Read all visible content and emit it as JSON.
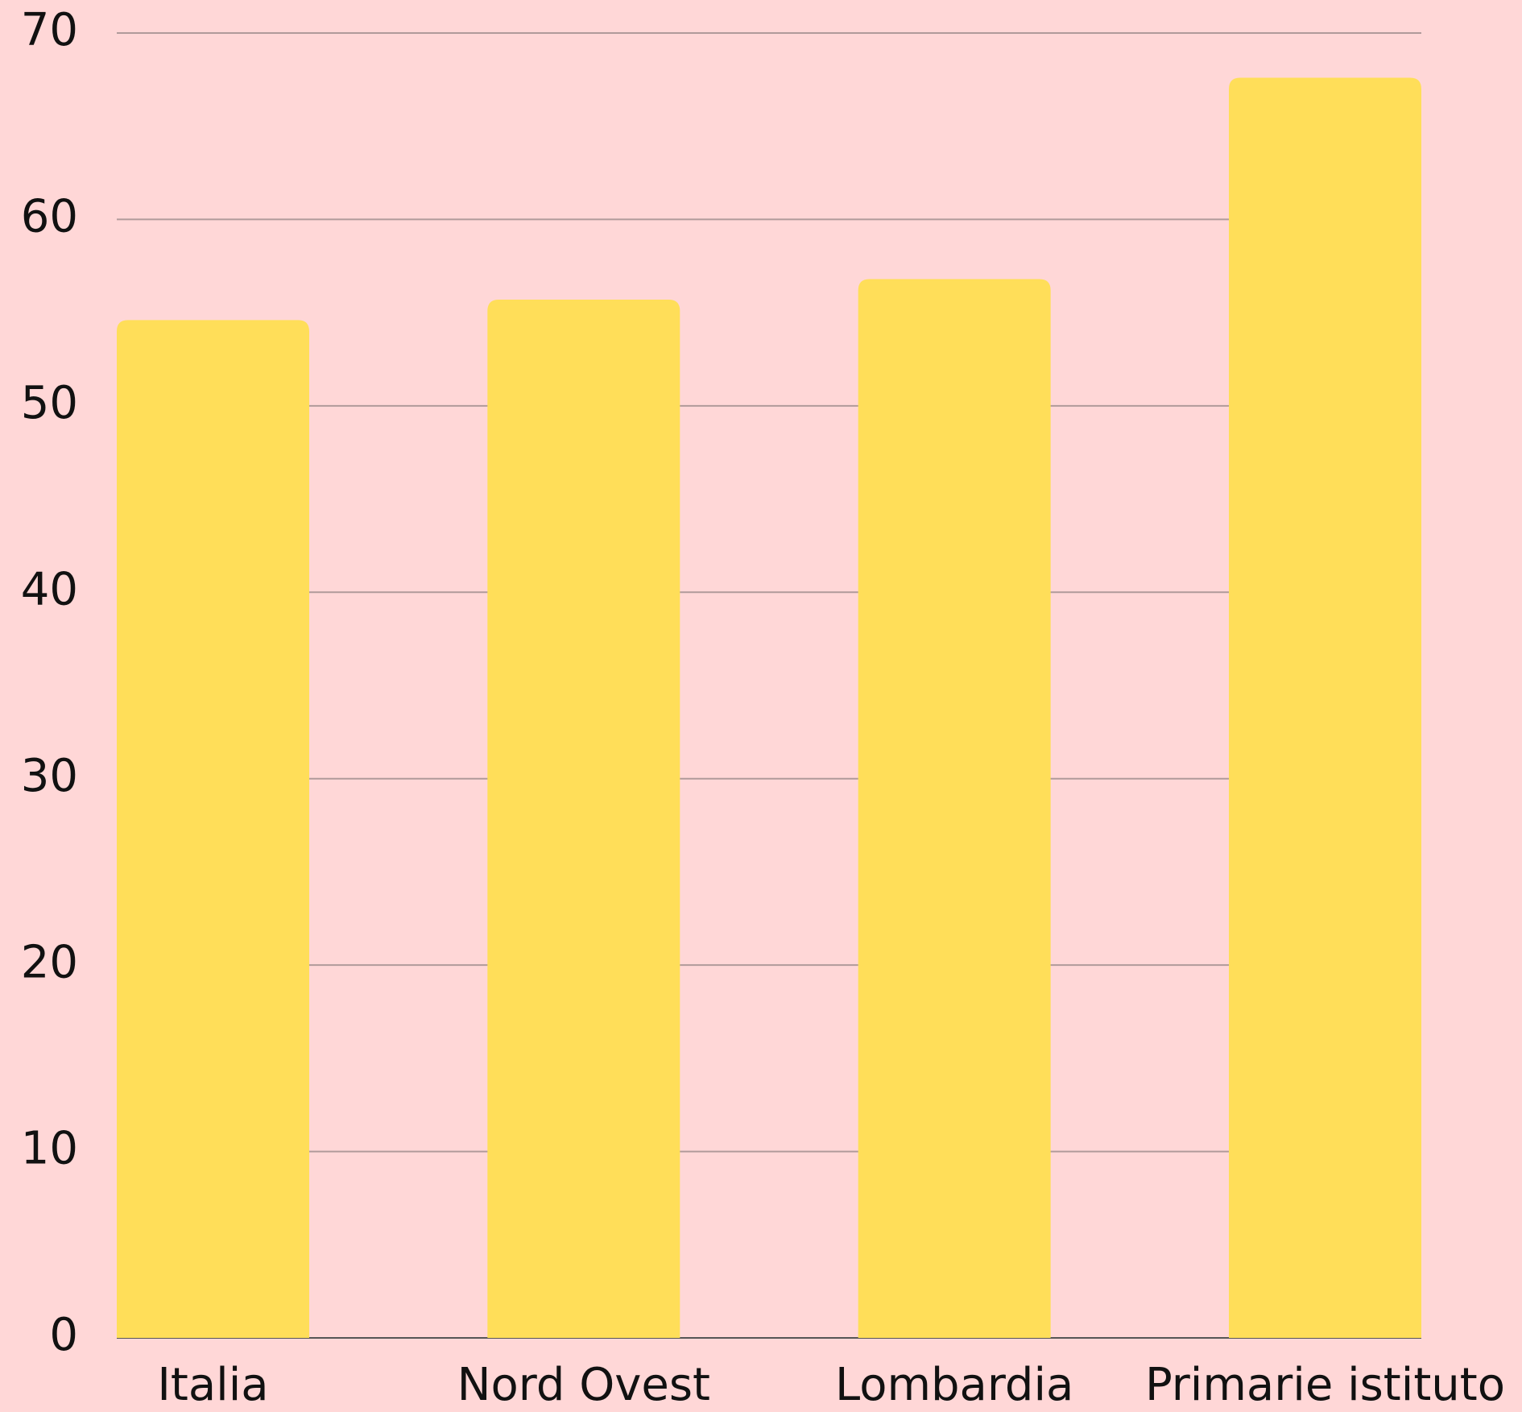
{
  "chart_data": {
    "type": "bar",
    "categories": [
      "Italia",
      "Nord Ovest",
      "Lombardia",
      "Primarie istituto"
    ],
    "values": [
      54.6,
      55.7,
      56.8,
      67.6
    ],
    "color": "#ffde59",
    "ylim": [
      0,
      70
    ],
    "yticks": [
      0,
      10,
      20,
      30,
      40,
      50,
      60,
      70
    ],
    "grid": true
  }
}
